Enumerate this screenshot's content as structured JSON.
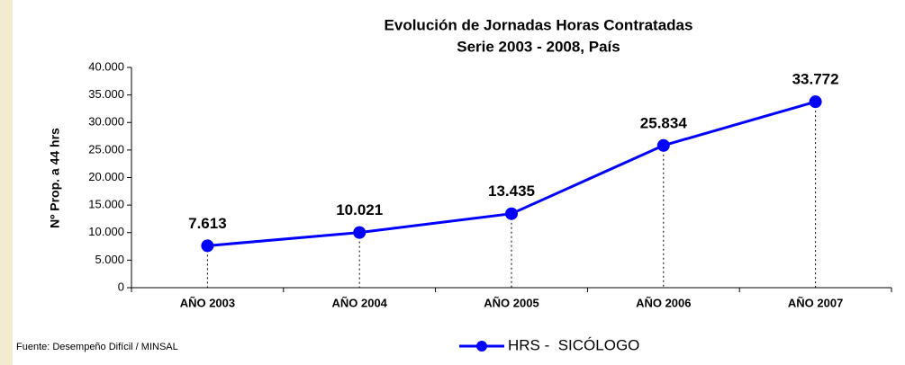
{
  "chart_data": {
    "type": "line",
    "title": "Evolución de Jornadas  Horas Contratadas",
    "subtitle": "Serie 2003 - 2008, País",
    "y_label": "Nº Prop. a 44 hrs",
    "source": "Fuente: Desempeño Difícil / MINSAL",
    "categories": [
      "AÑO 2003",
      "AÑO 2004",
      "AÑO 2005",
      "AÑO 2006",
      "AÑO 2007"
    ],
    "series": [
      {
        "name": "HRS -  SICÓLOGO",
        "color": "#0000ff",
        "values": [
          7613,
          10021,
          13435,
          25834,
          33772
        ],
        "value_labels": [
          "7.613",
          "10.021",
          "13.435",
          "25.834",
          "33.772"
        ]
      }
    ],
    "ylim": [
      0,
      40000
    ],
    "yticks": [
      0,
      {
        "value": 5000,
        "label": "5.000"
      },
      {
        "value": 10000,
        "label": "10.000"
      },
      {
        "value": 15000,
        "label": "15.000"
      },
      {
        "value": 20000,
        "label": "20.000"
      },
      {
        "value": 25000,
        "label": "25.000"
      },
      {
        "value": 30000,
        "label": "30.000"
      },
      {
        "value": 35000,
        "label": "35.000"
      },
      {
        "value": 40000,
        "label": "40.000"
      }
    ],
    "grid": false
  }
}
